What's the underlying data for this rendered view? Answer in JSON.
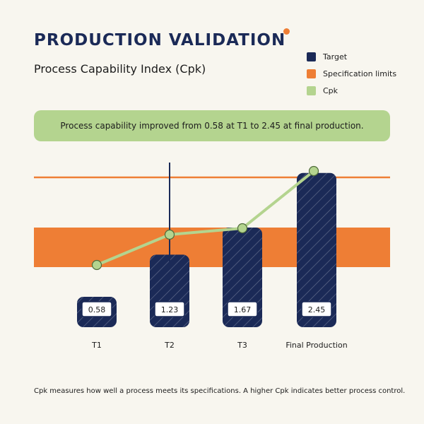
{
  "title": "PRODUCTION VALIDATION",
  "subtitle": "Process Capability Index (Cpk)",
  "legend": [
    {
      "label": "Target",
      "color": "#1b2a57"
    },
    {
      "label": "Specification limits",
      "color": "#ee7e35"
    },
    {
      "label": "Cpk",
      "color": "#b4d48f"
    }
  ],
  "callout": "Process capability improved from 0.58 at T1 to 2.45 at final production.",
  "footnote": "Cpk measures how well a process meets its specifications. A higher Cpk indicates better process control.",
  "colors": {
    "navy": "#1b2a57",
    "orange": "#ee7e35",
    "green": "#b4d48f",
    "background": "#f8f6ef"
  },
  "chart_data": {
    "type": "bar",
    "categories": [
      "T1",
      "T2",
      "T3",
      "Final Production"
    ],
    "values": [
      0.58,
      1.23,
      1.67,
      2.45
    ],
    "value_labels": [
      "0.58",
      "1.23",
      "1.67",
      "2.45"
    ],
    "line_series": {
      "name": "Cpk",
      "values": [
        0.58,
        1.23,
        1.67,
        2.45
      ]
    },
    "ylim": [
      0,
      2.6
    ],
    "xlabel": "",
    "ylabel": "",
    "grid": false,
    "legend_position": "top-right"
  }
}
